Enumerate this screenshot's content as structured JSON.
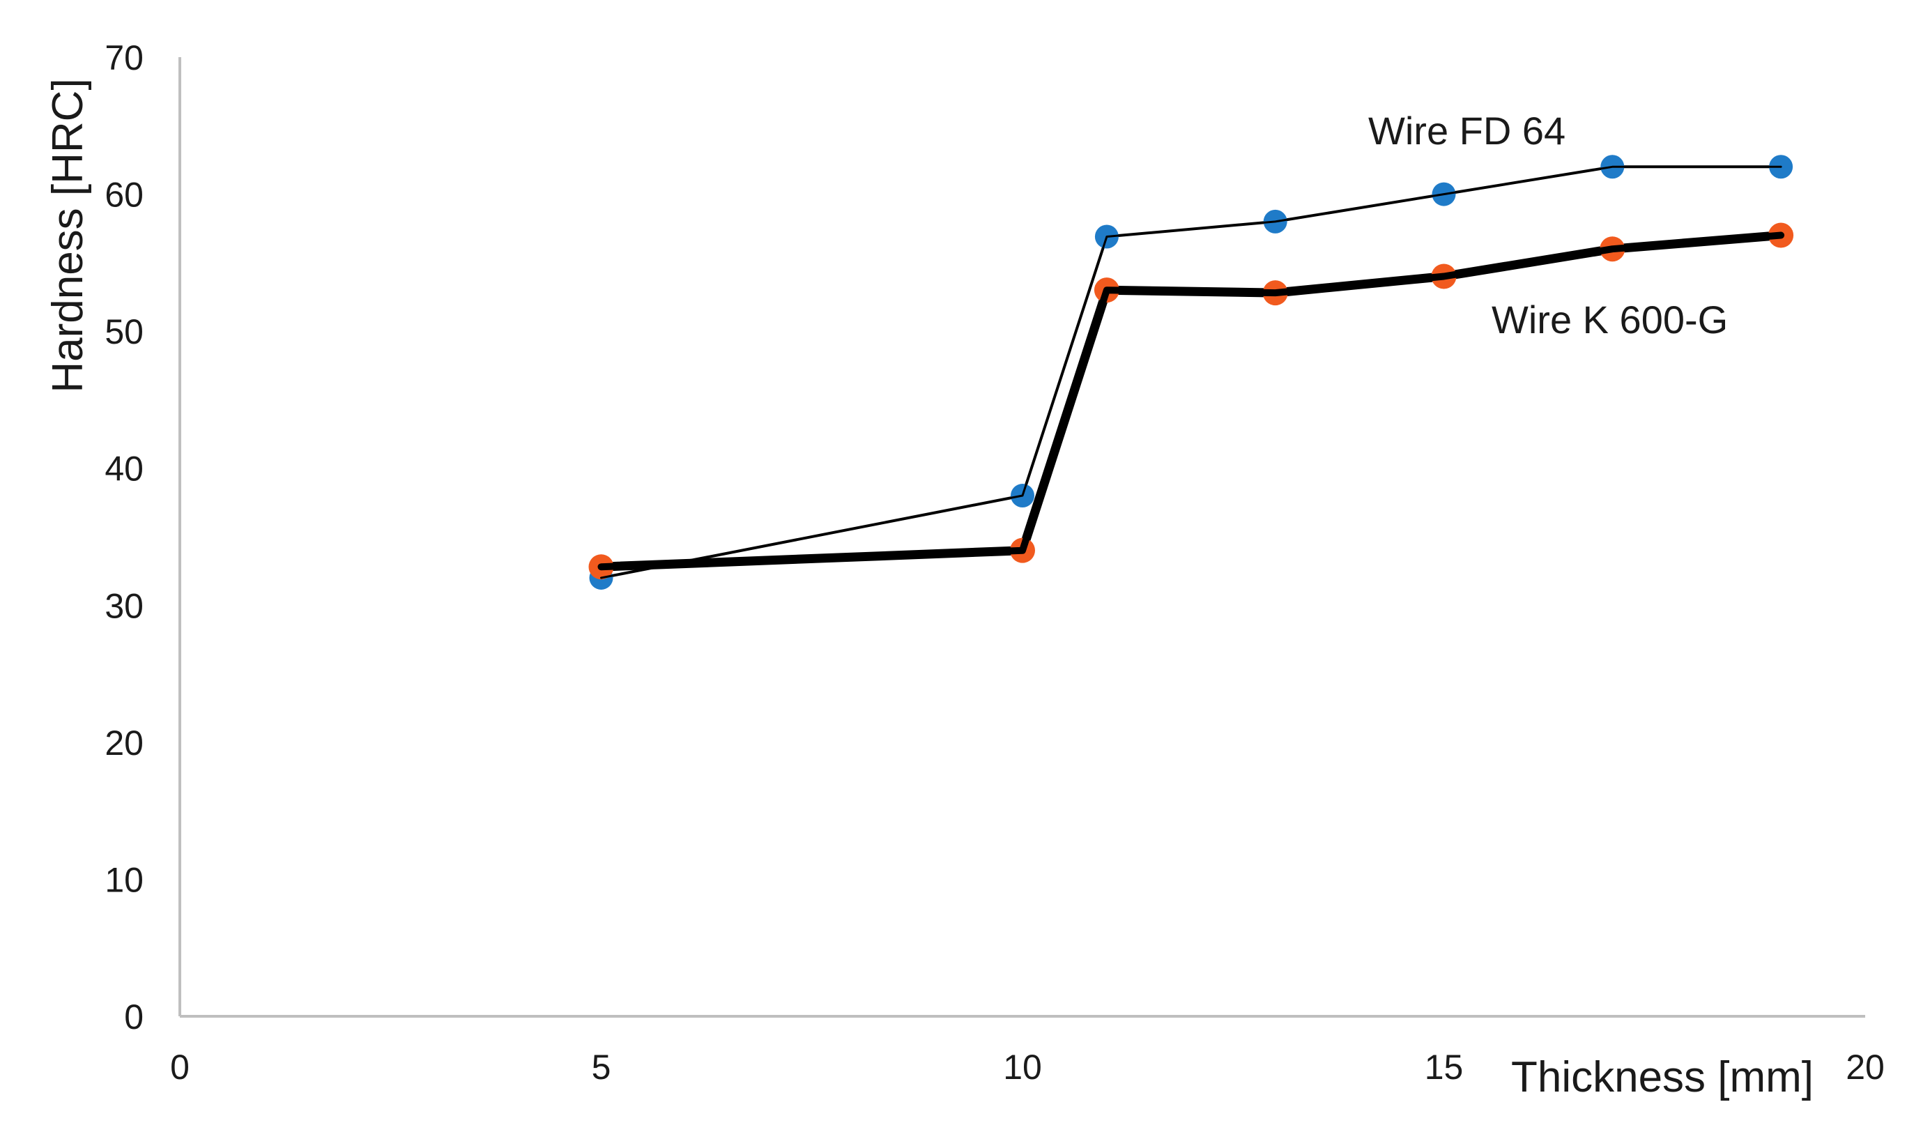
{
  "chart_data": {
    "type": "line",
    "title": "",
    "xlabel": "Thickness [mm]",
    "ylabel": "Hardness [HRC]",
    "xlim": [
      0,
      20
    ],
    "ylim": [
      0,
      70
    ],
    "xticks": [
      0,
      5,
      10,
      15,
      20
    ],
    "yticks": [
      0,
      10,
      20,
      30,
      40,
      50,
      60,
      70
    ],
    "grid": false,
    "legend": "none",
    "series": [
      {
        "name": "Wire FD 64",
        "color": "#1f7bc8",
        "line_color": "#000000",
        "x": [
          5,
          10,
          11,
          13,
          15,
          17,
          19
        ],
        "y": [
          32,
          38,
          56.9,
          58,
          60,
          62,
          62
        ]
      },
      {
        "name": "Wire K 600-G",
        "color": "#f15a1e",
        "line_color": "#000000",
        "x": [
          5,
          10,
          11,
          13,
          15,
          17,
          19
        ],
        "y": [
          32.8,
          34,
          53,
          52.8,
          54,
          56,
          57
        ]
      }
    ]
  }
}
